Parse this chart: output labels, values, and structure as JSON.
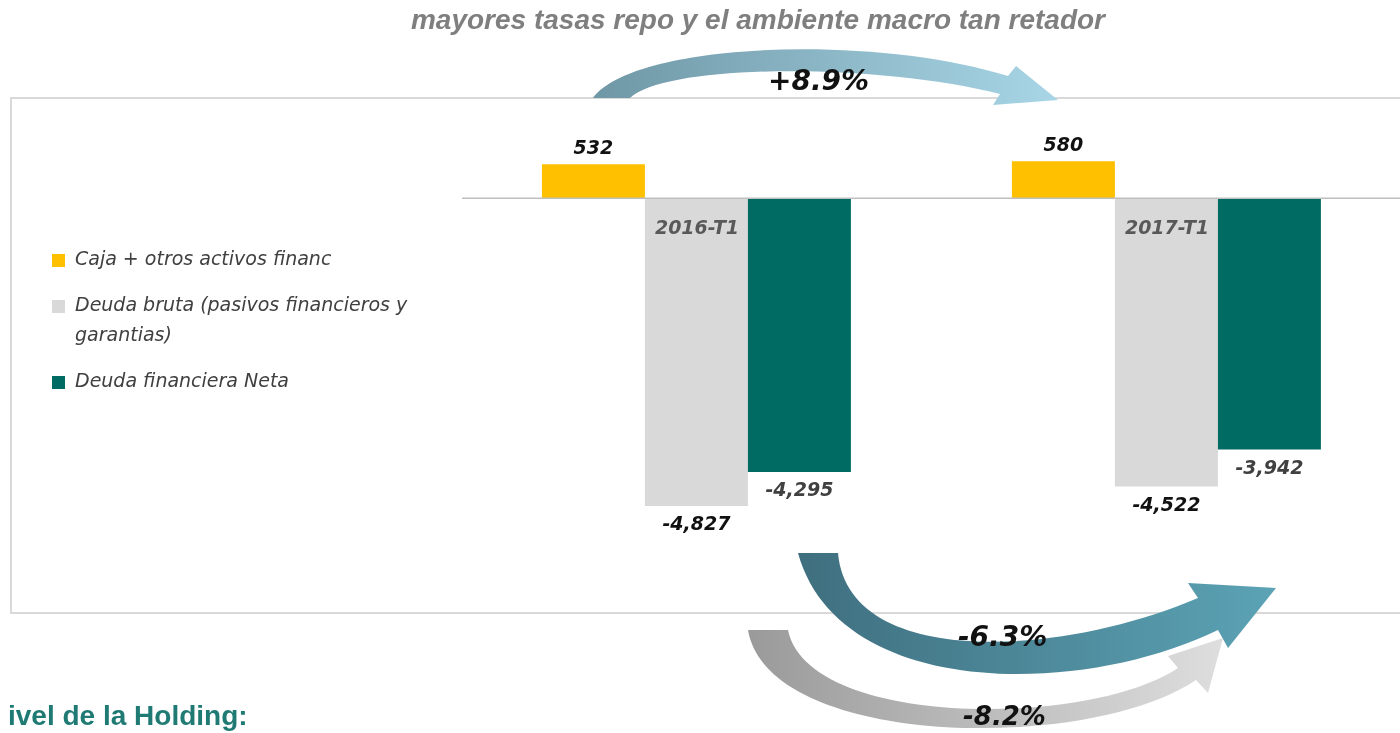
{
  "chart_data": {
    "type": "bar",
    "title": "mayores tasas repo y el ambiente macro tan retador",
    "categories": [
      "2016-T1",
      "2017-T1"
    ],
    "series": [
      {
        "name": "Caja + otros activos financ",
        "color": "#ffc000",
        "values": [
          532,
          580
        ],
        "value_labels": [
          "532",
          "580"
        ]
      },
      {
        "name": "Deuda bruta (pasivos financieros y garantias)",
        "color": "#d9d9d9",
        "values": [
          -4827,
          -4522
        ],
        "value_labels": [
          "-4,827",
          "-4,522"
        ]
      },
      {
        "name": "Deuda financiera Neta",
        "color": "#006b63",
        "values": [
          -4295,
          -3942
        ],
        "value_labels": [
          "-4,295",
          "-3,942"
        ]
      }
    ],
    "legend": "left",
    "grid": false,
    "annotations": [
      "+8.9%",
      "-6.3%",
      "-8.2%",
      "ivel de la Holding:"
    ]
  }
}
